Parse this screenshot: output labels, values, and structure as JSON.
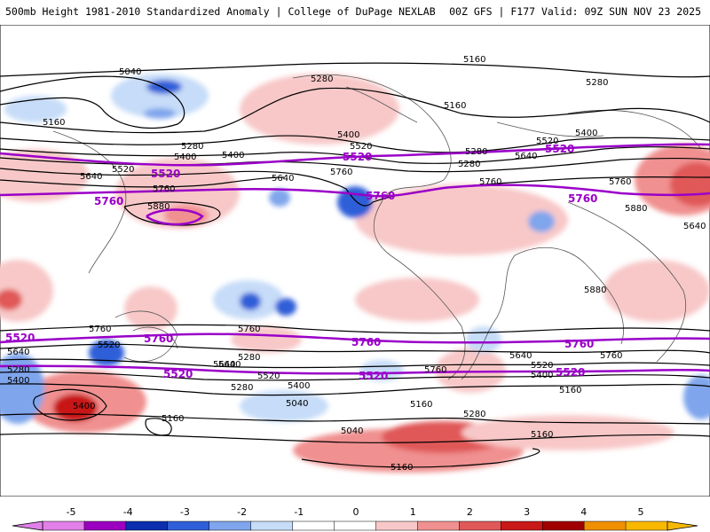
{
  "header": {
    "left": "500mb Height 1981-2010 Standardized Anomaly | College of DuPage NEXLAB",
    "right": "00Z GFS | F177 Valid: 09Z SUN NOV 23 2025"
  },
  "colors": {
    "purple_contour": "#9a00c8",
    "black_contour": "#000000"
  },
  "contour_labels": {
    "black": [
      "5040",
      "5280",
      "5160",
      "5160",
      "5280",
      "5400",
      "5520",
      "5160",
      "5280",
      "5520",
      "5400",
      "5640",
      "5760",
      "5880",
      "5640",
      "5760",
      "5400",
      "5520",
      "5640",
      "5280",
      "5280",
      "5400",
      "5760",
      "5640",
      "5760",
      "5880",
      "5880",
      "5760",
      "5520",
      "5400",
      "5280",
      "5640",
      "5280",
      "5400",
      "5520",
      "5640",
      "5280",
      "5400",
      "5160",
      "5040",
      "5160",
      "5040",
      "5160",
      "5760",
      "5640",
      "5520",
      "5400",
      "5160",
      "5280",
      "5160",
      "5760",
      "5640",
      "5760"
    ],
    "purple": [
      "5520",
      "5760",
      "5520",
      "5760",
      "5520",
      "5760",
      "5760",
      "5520",
      "5760",
      "5520",
      "5760",
      "5520",
      "5520"
    ]
  },
  "colorbar": {
    "ticks": [
      "-5",
      "-4",
      "-3",
      "-2",
      "-1",
      "0",
      "1",
      "2",
      "3",
      "4",
      "5"
    ],
    "segments": [
      {
        "color": "#e080e8"
      },
      {
        "color": "#9c00c0"
      },
      {
        "color": "#0c2fb0"
      },
      {
        "color": "#2f5fd8"
      },
      {
        "color": "#7fa5ec"
      },
      {
        "color": "#c6dcf8"
      },
      {
        "color": "#ffffff"
      },
      {
        "color": "#ffffff"
      },
      {
        "color": "#f8c8c8"
      },
      {
        "color": "#f09090"
      },
      {
        "color": "#e05858"
      },
      {
        "color": "#c81818"
      },
      {
        "color": "#a00000"
      },
      {
        "color": "#f09000"
      },
      {
        "color": "#f8b800"
      }
    ]
  }
}
